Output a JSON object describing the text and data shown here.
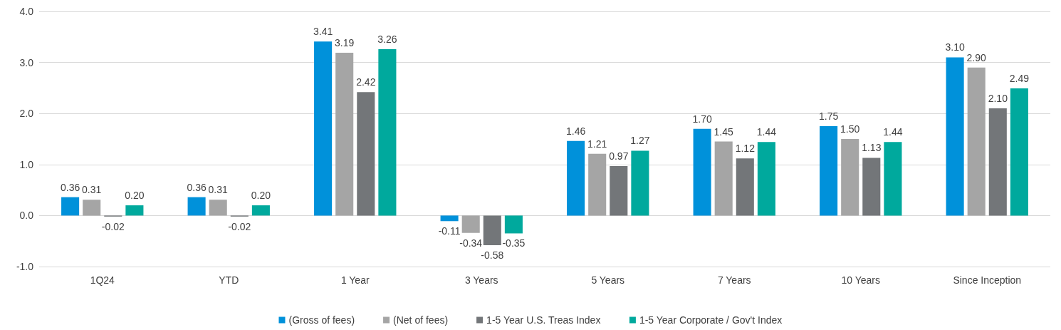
{
  "chart_data": {
    "type": "bar",
    "categories": [
      "1Q24",
      "YTD",
      "1 Year",
      "3 Years",
      "5 Years",
      "7 Years",
      "10 Years",
      "Since Inception"
    ],
    "series": [
      {
        "name": "(Gross of fees)",
        "color": "#0091da",
        "values": [
          0.36,
          0.36,
          3.41,
          -0.11,
          1.46,
          1.7,
          1.75,
          3.1
        ],
        "value_labels": [
          "0.36",
          "0.36",
          "3.41",
          "-0.11",
          "1.46",
          "1.70",
          "1.75",
          "3.10"
        ]
      },
      {
        "name": "(Net of fees)",
        "color": "#a5a5a5",
        "values": [
          0.31,
          0.31,
          3.19,
          -0.34,
          1.21,
          1.45,
          1.5,
          2.9
        ],
        "value_labels": [
          "0.31",
          "0.31",
          "3.19",
          "-0.34",
          "1.21",
          "1.45",
          "1.50",
          "2.90"
        ]
      },
      {
        "name": "1-5 Year U.S. Treas Index",
        "color": "#737679",
        "values": [
          -0.02,
          -0.02,
          2.42,
          -0.58,
          0.97,
          1.12,
          1.13,
          2.1
        ],
        "value_labels": [
          "-0.02",
          "-0.02",
          "2.42",
          "-0.58",
          "0.97",
          "1.12",
          "1.13",
          "2.10"
        ]
      },
      {
        "name": "1-5 Year Corporate / Gov't Index",
        "color": "#00a99d",
        "values": [
          0.2,
          0.2,
          3.26,
          -0.35,
          1.27,
          1.44,
          1.44,
          2.49
        ],
        "value_labels": [
          "0.20",
          "0.20",
          "3.26",
          "-0.35",
          "1.27",
          "1.44",
          "1.44",
          "2.49"
        ]
      }
    ],
    "ylim": [
      -1,
      4
    ],
    "yticks": [
      {
        "value": -1,
        "label": "-1.0"
      },
      {
        "value": 0,
        "label": "0.0"
      },
      {
        "value": 1,
        "label": "1.0"
      },
      {
        "value": 2,
        "label": "2.0"
      },
      {
        "value": 3,
        "label": "3.0"
      },
      {
        "value": 4,
        "label": "4.0"
      }
    ],
    "grid": "y",
    "legend": "bottom"
  }
}
